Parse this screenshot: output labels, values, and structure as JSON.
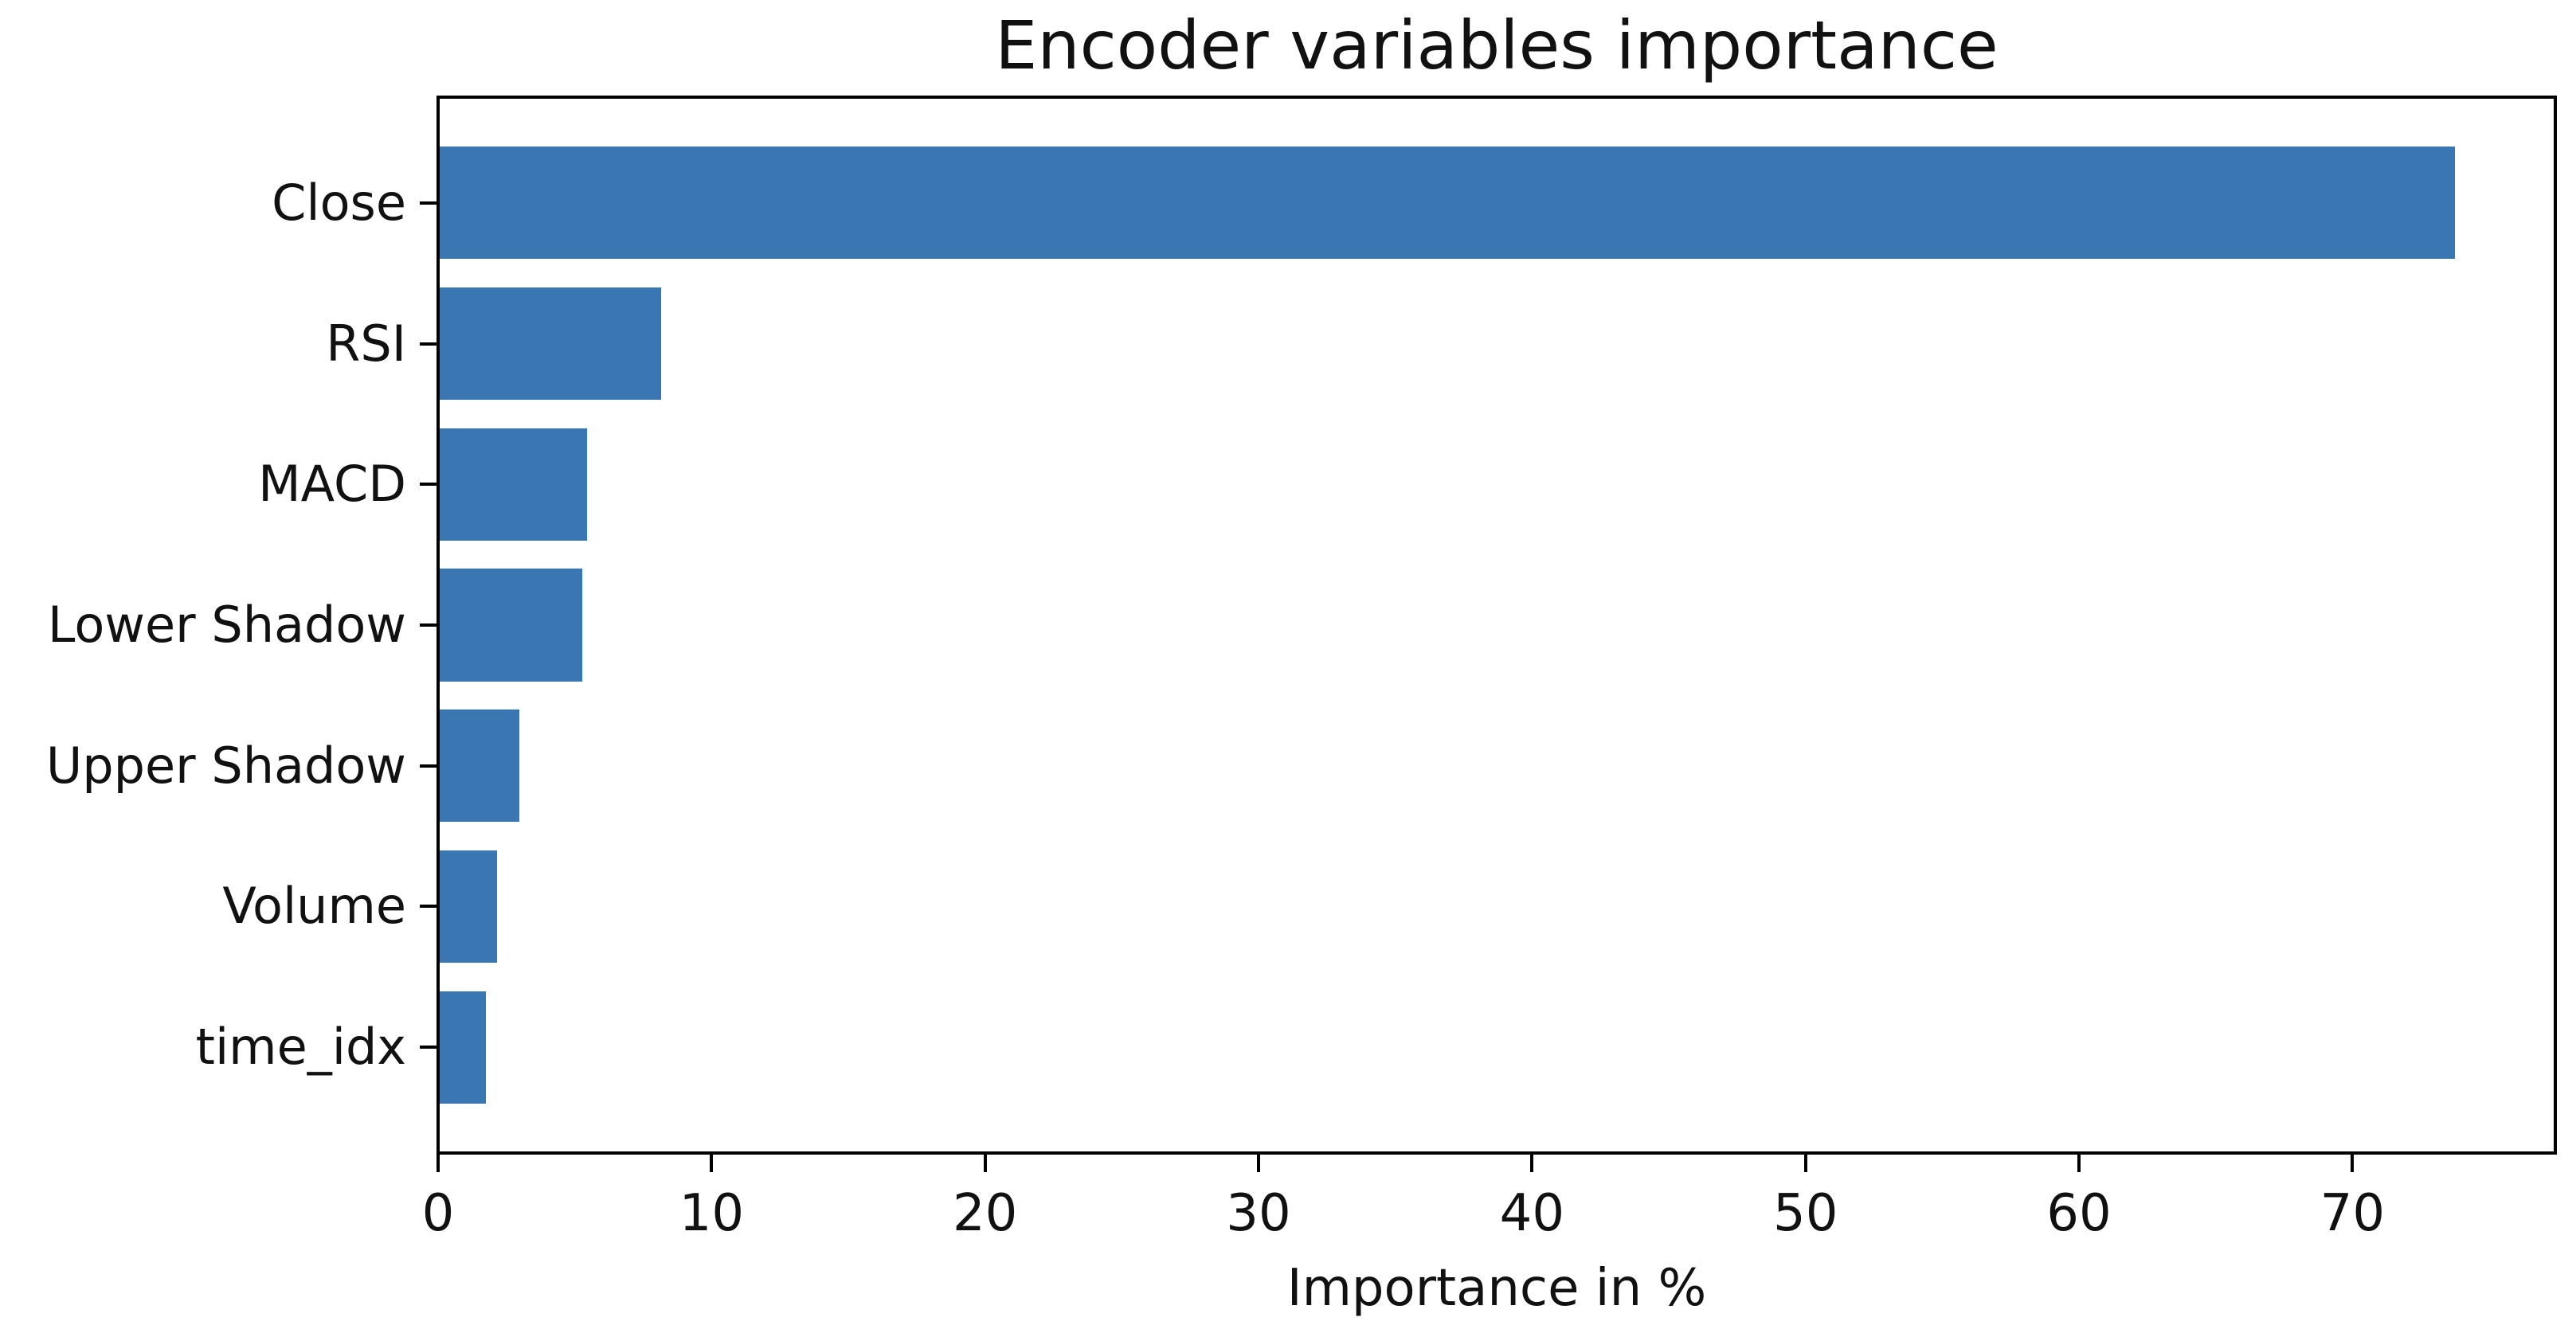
{
  "chart_data": {
    "type": "bar",
    "orientation": "horizontal",
    "title": "Encoder variables importance",
    "xlabel": "Importance in %",
    "ylabel": "",
    "categories": [
      "Close",
      "RSI",
      "MACD",
      "Lower Shadow",
      "Upper Shadow",
      "Volume",
      "time_idx"
    ],
    "values": [
      73.7,
      8.1,
      5.4,
      5.2,
      2.9,
      2.1,
      1.7
    ],
    "xticks": [
      0,
      10,
      20,
      30,
      40,
      50,
      60,
      70
    ],
    "xlim": [
      0,
      77.3
    ],
    "grid": false,
    "legend": "none",
    "bar_color": "#3a76b1",
    "axis_color": "#000000",
    "text_color": "#111111",
    "background_color": "#ffffff"
  }
}
